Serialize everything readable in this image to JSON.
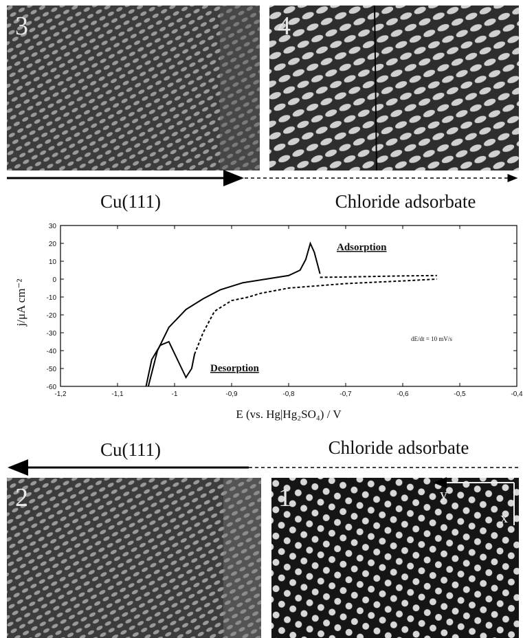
{
  "panels": [
    {
      "label": "3"
    },
    {
      "label": "4"
    },
    {
      "label": "2"
    },
    {
      "label": "1"
    }
  ],
  "captions_top": [
    "Cu(111)",
    "Chloride adsorbate"
  ],
  "captions_bottom": [
    "Cu(111)",
    "Chloride adsorbate"
  ],
  "panel_axes": [
    "y",
    "x"
  ],
  "chart_data": {
    "type": "line",
    "xlabel": "E (vs. Hg|Hg₂SO₄) / V",
    "ylabel": "j/μA cm⁻²",
    "annotations": [
      "Adsorption",
      "Desorption",
      "dE/dt = 10 mV/s"
    ],
    "series": [
      {
        "style": "solid",
        "color": "#000000",
        "x": [
          -1.046,
          -1.03,
          -1.01,
          -0.98,
          -0.95,
          -0.92,
          -0.88,
          -0.84,
          -0.8,
          -0.78,
          -0.77,
          -0.762,
          -0.755,
          -0.745
        ],
        "values": [
          -60,
          -40,
          -27,
          -17,
          -11,
          -6,
          -2,
          0,
          2,
          5,
          11,
          20,
          15,
          3
        ]
      },
      {
        "style": "dashed",
        "color": "#000000",
        "x": [
          -0.745,
          -0.7,
          -0.65,
          -0.6,
          -0.54
        ],
        "values": [
          1,
          1.2,
          1.5,
          1.8,
          2
        ]
      },
      {
        "style": "solid",
        "color": "#000000",
        "x": [
          -1.05,
          -1.04,
          -1.025,
          -1.01,
          -0.995,
          -0.98,
          -0.97,
          -0.965
        ],
        "values": [
          -60,
          -45,
          -37,
          -35,
          -45,
          -55,
          -50,
          -42
        ]
      },
      {
        "style": "dashed",
        "color": "#000000",
        "x": [
          -0.965,
          -0.95,
          -0.93,
          -0.9,
          -0.87,
          -0.85,
          -0.8,
          -0.7,
          -0.6,
          -0.54
        ],
        "values": [
          -42,
          -30,
          -18,
          -12,
          -10,
          -8,
          -5,
          -2.5,
          -1,
          0
        ]
      }
    ],
    "xlim": [
      -1.2,
      -0.4
    ],
    "xticks": [
      {
        "value": -1.2,
        "label": "-1,2"
      },
      {
        "value": -1.1,
        "label": "-1,1"
      },
      -1,
      {
        "value": -0.9,
        "label": "-0,9"
      },
      {
        "value": -0.8,
        "label": "-0,8"
      },
      {
        "value": -0.7,
        "label": "-0,7"
      },
      {
        "value": -0.6,
        "label": "-0,6"
      },
      {
        "value": -0.5,
        "label": "-0,5"
      },
      {
        "value": -0.4,
        "label": "-0,4"
      }
    ],
    "ylim": [
      -60,
      30
    ],
    "yticks": [
      30,
      20,
      10,
      0,
      -10,
      -20,
      -30,
      -40,
      -50,
      -60
    ]
  }
}
